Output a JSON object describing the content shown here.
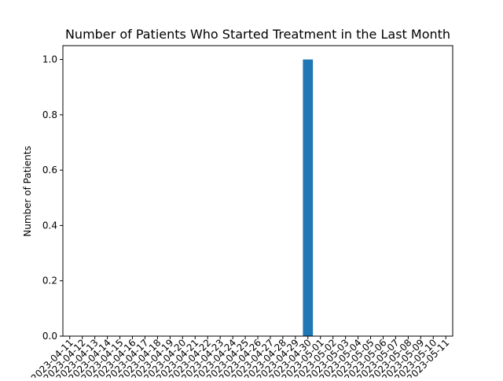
{
  "chart_data": {
    "type": "bar",
    "title": "Number of Patients Who Started Treatment in the Last Month",
    "xlabel": "",
    "ylabel": "Number of Patients",
    "categories": [
      "2023-04-11",
      "2023-04-12",
      "2023-04-13",
      "2023-04-14",
      "2023-04-15",
      "2023-04-16",
      "2023-04-17",
      "2023-04-18",
      "2023-04-19",
      "2023-04-20",
      "2023-04-21",
      "2023-04-22",
      "2023-04-23",
      "2023-04-24",
      "2023-04-25",
      "2023-04-26",
      "2023-04-27",
      "2023-04-28",
      "2023-04-29",
      "2023-04-30",
      "2023-05-01",
      "2023-05-02",
      "2023-05-03",
      "2023-05-04",
      "2023-05-05",
      "2023-05-06",
      "2023-05-07",
      "2023-05-08",
      "2023-05-09",
      "2023-05-10",
      "2023-05-11"
    ],
    "values": [
      0,
      0,
      0,
      0,
      0,
      0,
      0,
      0,
      0,
      0,
      0,
      0,
      0,
      0,
      0,
      0,
      0,
      0,
      0,
      1,
      0,
      0,
      0,
      0,
      0,
      0,
      0,
      0,
      0,
      0,
      0
    ],
    "ylim": [
      0,
      1.05
    ],
    "yticks": [
      0.0,
      0.2,
      0.4,
      0.6,
      0.8,
      1.0
    ],
    "ytick_labels": [
      "0.0",
      "0.2",
      "0.4",
      "0.6",
      "0.8",
      "1.0"
    ],
    "grid": false,
    "bar_color": "#1f77b4"
  }
}
